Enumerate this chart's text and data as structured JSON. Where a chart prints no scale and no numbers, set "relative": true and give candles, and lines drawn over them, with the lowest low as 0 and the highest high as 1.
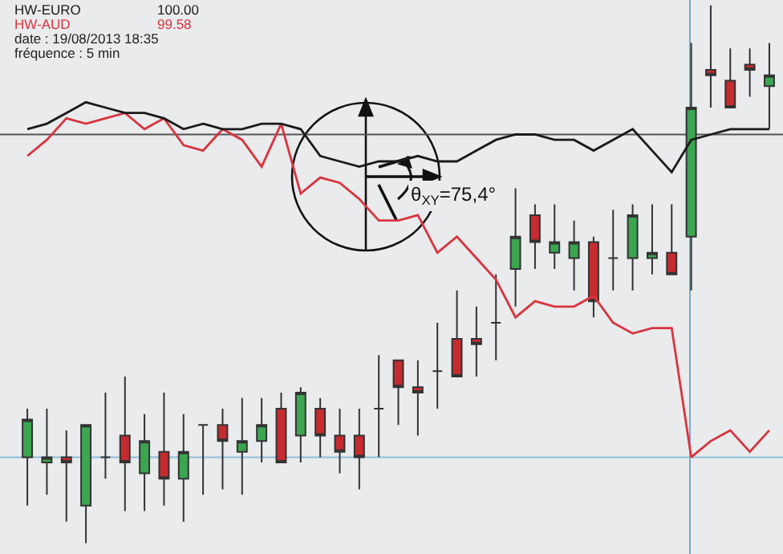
{
  "chart_data": {
    "type": "candlestick",
    "relative": true,
    "legend": false,
    "categories": [
      null,
      null,
      null,
      null,
      null,
      null,
      null,
      null,
      null,
      null,
      null,
      null,
      null,
      null,
      null,
      null,
      null,
      null,
      null,
      null,
      null,
      null,
      null,
      null,
      null,
      null,
      null,
      null,
      null,
      null,
      null,
      null,
      null,
      null,
      null,
      null,
      null,
      null,
      null
    ],
    "ohlc": [
      [
        0.16,
        0.25,
        0.07,
        0.23
      ],
      [
        0.15,
        0.25,
        0.09,
        0.16
      ],
      [
        0.16,
        0.21,
        0.04,
        0.15
      ],
      [
        0.07,
        0.22,
        0,
        0.22
      ],
      [
        0.16,
        0.28,
        0.12,
        0.16
      ],
      [
        0.2,
        0.31,
        0.06,
        0.15
      ],
      [
        0.13,
        0.24,
        0.06,
        0.19
      ],
      [
        0.17,
        0.28,
        0.07,
        0.12
      ],
      [
        0.12,
        0.24,
        0.04,
        0.17
      ],
      [
        0.22,
        0.22,
        0.09,
        0.22
      ],
      [
        0.22,
        0.25,
        0.1,
        0.19
      ],
      [
        0.17,
        0.27,
        0.09,
        0.19
      ],
      [
        0.19,
        0.27,
        0.15,
        0.22
      ],
      [
        0.25,
        0.28,
        0.15,
        0.15
      ],
      [
        0.2,
        0.29,
        0.15,
        0.28
      ],
      [
        0.25,
        0.27,
        0.16,
        0.2
      ],
      [
        0.2,
        0.25,
        0.13,
        0.17
      ],
      [
        0.2,
        0.25,
        0.1,
        0.16
      ],
      [
        0.25,
        0.35,
        0.16,
        0.25
      ],
      [
        0.34,
        0.34,
        0.22,
        0.29
      ],
      [
        0.29,
        0.34,
        0.2,
        0.28
      ],
      [
        0.32,
        0.41,
        0.25,
        0.32
      ],
      [
        0.38,
        0.47,
        0.31,
        0.31
      ],
      [
        0.38,
        0.44,
        0.31,
        0.37
      ],
      [
        0.41,
        0.5,
        0.34,
        0.41
      ],
      [
        0.51,
        0.66,
        0.44,
        0.57
      ],
      [
        0.61,
        0.63,
        0.51,
        0.56
      ],
      [
        0.54,
        0.63,
        0.51,
        0.56
      ],
      [
        0.53,
        0.6,
        0.47,
        0.56
      ],
      [
        0.56,
        0.57,
        0.42,
        0.45
      ],
      [
        0.53,
        0.62,
        0.47,
        0.53
      ],
      [
        0.53,
        0.63,
        0.47,
        0.61
      ],
      [
        0.53,
        0.63,
        0.5,
        0.54
      ],
      [
        0.54,
        0.63,
        0.5,
        0.5
      ],
      [
        0.57,
        0.93,
        0.47,
        0.81
      ],
      [
        0.88,
        1.0,
        0.81,
        0.87
      ],
      [
        0.86,
        0.92,
        0.81,
        0.81
      ],
      [
        0.89,
        0.92,
        0.83,
        0.88
      ],
      [
        0.85,
        0.93,
        0.77,
        0.87
      ]
    ],
    "colors": [
      "#3ba550",
      "#3ba550",
      "#c62b2f",
      "#3ba550",
      "#3a3a3a",
      "#c62b2f",
      "#3ba550",
      "#c62b2f",
      "#3ba550",
      "#3a3a3a",
      "#c62b2f",
      "#3ba550",
      "#3ba550",
      "#c62b2f",
      "#3ba550",
      "#c62b2f",
      "#c62b2f",
      "#c62b2f",
      "#3a3a3a",
      "#c62b2f",
      "#c62b2f",
      "#3a3a3a",
      "#c62b2f",
      "#c62b2f",
      "#3a3a3a",
      "#3ba550",
      "#c62b2f",
      "#3ba550",
      "#3ba550",
      "#c62b2f",
      "#3a3a3a",
      "#3ba550",
      "#3ba550",
      "#c62b2f",
      "#3ba550",
      "#c62b2f",
      "#c62b2f",
      "#c62b2f",
      "#3ba550"
    ],
    "series": [
      {
        "name": "HW-EURO",
        "type": "line",
        "color": "#1a1a1a",
        "values": [
          0.77,
          0.78,
          0.8,
          0.82,
          0.81,
          0.8,
          0.8,
          0.79,
          0.77,
          0.78,
          0.77,
          0.77,
          0.78,
          0.78,
          0.77,
          0.72,
          0.71,
          0.7,
          0.71,
          0.71,
          0.72,
          0.71,
          0.71,
          0.73,
          0.75,
          0.76,
          0.76,
          0.75,
          0.75,
          0.73,
          0.75,
          0.77,
          0.73,
          0.69,
          0.75,
          0.76,
          0.77,
          0.77,
          0.77
        ]
      },
      {
        "name": "HW-AUD",
        "type": "line",
        "color": "#d9343f",
        "values": [
          0.72,
          0.75,
          0.79,
          0.78,
          0.79,
          0.8,
          0.77,
          0.79,
          0.74,
          0.73,
          0.77,
          0.75,
          0.7,
          0.78,
          0.65,
          0.68,
          0.67,
          0.64,
          0.6,
          0.6,
          0.61,
          0.54,
          0.57,
          0.53,
          0.49,
          0.42,
          0.45,
          0.44,
          0.44,
          0.46,
          0.41,
          0.39,
          0.4,
          0.4,
          0.16,
          0.19,
          0.21,
          0.17,
          0.21
        ]
      }
    ],
    "ref_lines": [
      {
        "axis": "y",
        "value": 0.76,
        "color": "#555555"
      },
      {
        "axis": "y",
        "value": 0.16,
        "color": "#8fbfd6"
      }
    ],
    "annotations": [
      "100.00",
      "99.58",
      "date : 19/08/2013 18:35",
      "fréquence : 5 min",
      "θ$_{XY}$=75,4°"
    ]
  }
}
